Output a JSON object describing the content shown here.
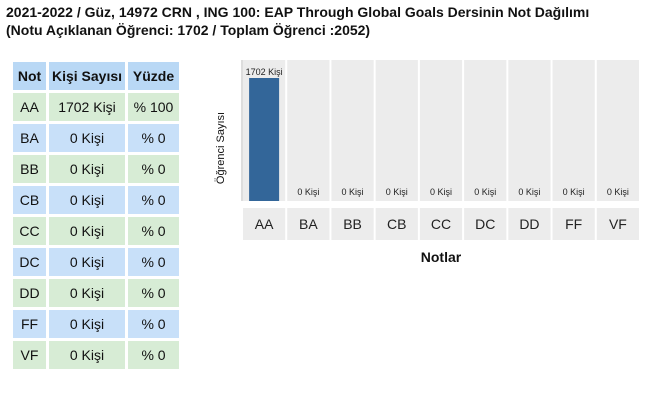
{
  "title": {
    "line1": "2021-2022 / Güz, 14972 CRN , ING 100: EAP Through Global Goals Dersinin Not Dağılımı",
    "line2": "(Notu Açıklanan Öğrenci: 1702 / Toplam Öğrenci :2052)"
  },
  "table": {
    "headers": [
      "Not",
      "Kişi Sayısı",
      "Yüzde"
    ],
    "rows": [
      {
        "grade": "AA",
        "count": "1702 Kişi",
        "percent": "% 100"
      },
      {
        "grade": "BA",
        "count": "0 Kişi",
        "percent": "% 0"
      },
      {
        "grade": "BB",
        "count": "0 Kişi",
        "percent": "% 0"
      },
      {
        "grade": "CB",
        "count": "0 Kişi",
        "percent": "% 0"
      },
      {
        "grade": "CC",
        "count": "0 Kişi",
        "percent": "% 0"
      },
      {
        "grade": "DC",
        "count": "0 Kişi",
        "percent": "% 0"
      },
      {
        "grade": "DD",
        "count": "0 Kişi",
        "percent": "% 0"
      },
      {
        "grade": "FF",
        "count": "0 Kişi",
        "percent": "% 0"
      },
      {
        "grade": "VF",
        "count": "0 Kişi",
        "percent": "% 0"
      }
    ]
  },
  "colors": {
    "bar": "#336699",
    "header_bg": "#b9d8f5",
    "row_green": "#d7ecd5",
    "row_blue": "#c8e0f9",
    "plot_bg": "#ececec"
  },
  "chart_data": {
    "type": "bar",
    "categories": [
      "AA",
      "BA",
      "BB",
      "CB",
      "CC",
      "DC",
      "DD",
      "FF",
      "VF"
    ],
    "values": [
      1702,
      0,
      0,
      0,
      0,
      0,
      0,
      0,
      0
    ],
    "data_labels": [
      "1702 Kişi",
      "0 Kişi",
      "0 Kişi",
      "0 Kişi",
      "0 Kişi",
      "0 Kişi",
      "0 Kişi",
      "0 Kişi",
      "0 Kişi"
    ],
    "xlabel": "Notlar",
    "ylabel": "Öğrenci Sayısı",
    "ylim": [
      0,
      2052
    ],
    "grid": false
  }
}
